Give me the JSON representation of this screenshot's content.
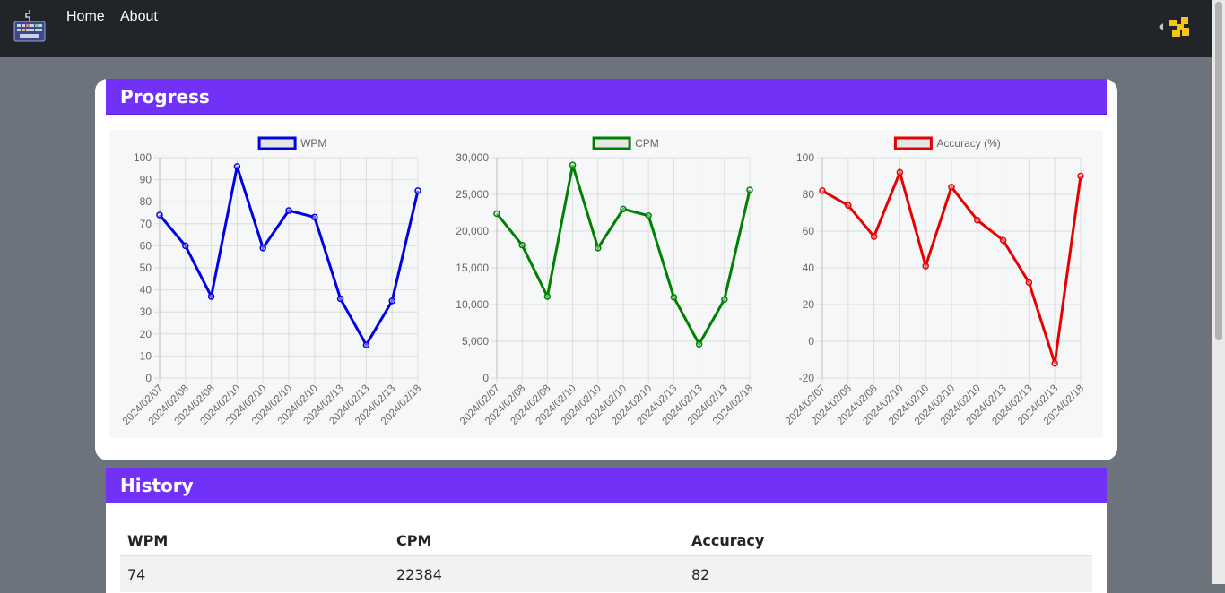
{
  "nav": {
    "links": [
      "Home",
      "About"
    ]
  },
  "progress": {
    "title": "Progress"
  },
  "history": {
    "title": "History",
    "columns": [
      "WPM",
      "CPM",
      "Accuracy"
    ],
    "rows": [
      [
        "74",
        "22384",
        "82"
      ]
    ]
  },
  "chart_data": [
    {
      "type": "line",
      "series": [
        {
          "name": "WPM",
          "color": "#0000e6",
          "values": [
            74,
            60,
            37,
            96,
            59,
            76,
            73,
            36,
            15,
            35,
            85
          ]
        }
      ],
      "categories": [
        "2024/02/07",
        "2024/02/08",
        "2024/02/08",
        "2024/02/10",
        "2024/02/10",
        "2024/02/10",
        "2024/02/10",
        "2024/02/13",
        "2024/02/13",
        "2024/02/13",
        "2024/02/18"
      ],
      "ylim": [
        0,
        100
      ],
      "yticks": [
        0,
        10,
        20,
        30,
        40,
        50,
        60,
        70,
        80,
        90,
        100
      ],
      "ytick_labels": [
        "0",
        "10",
        "20",
        "30",
        "40",
        "50",
        "60",
        "70",
        "80",
        "90",
        "100"
      ],
      "legend": "top"
    },
    {
      "type": "line",
      "series": [
        {
          "name": "CPM",
          "color": "#008000",
          "values": [
            22384,
            18100,
            11100,
            29000,
            17700,
            23000,
            22100,
            11000,
            4600,
            10700,
            25600
          ]
        }
      ],
      "categories": [
        "2024/02/07",
        "2024/02/08",
        "2024/02/08",
        "2024/02/10",
        "2024/02/10",
        "2024/02/10",
        "2024/02/10",
        "2024/02/13",
        "2024/02/13",
        "2024/02/13",
        "2024/02/18"
      ],
      "ylim": [
        0,
        30000
      ],
      "yticks": [
        0,
        5000,
        10000,
        15000,
        20000,
        25000,
        30000
      ],
      "ytick_labels": [
        "0",
        "5,000",
        "10,000",
        "15,000",
        "20,000",
        "25,000",
        "30,000"
      ],
      "legend": "top"
    },
    {
      "type": "line",
      "series": [
        {
          "name": "Accuracy (%)",
          "color": "#e60000",
          "values": [
            82,
            74,
            57,
            92,
            41,
            84,
            66,
            55,
            32,
            -12,
            90
          ]
        }
      ],
      "categories": [
        "2024/02/07",
        "2024/02/08",
        "2024/02/08",
        "2024/02/10",
        "2024/02/10",
        "2024/02/10",
        "2024/02/10",
        "2024/02/13",
        "2024/02/13",
        "2024/02/13",
        "2024/02/18"
      ],
      "ylim": [
        -20,
        100
      ],
      "yticks": [
        -20,
        0,
        20,
        40,
        60,
        80,
        100
      ],
      "ytick_labels": [
        "-20",
        "0",
        "20",
        "40",
        "60",
        "80",
        "100"
      ],
      "legend": "top"
    }
  ]
}
